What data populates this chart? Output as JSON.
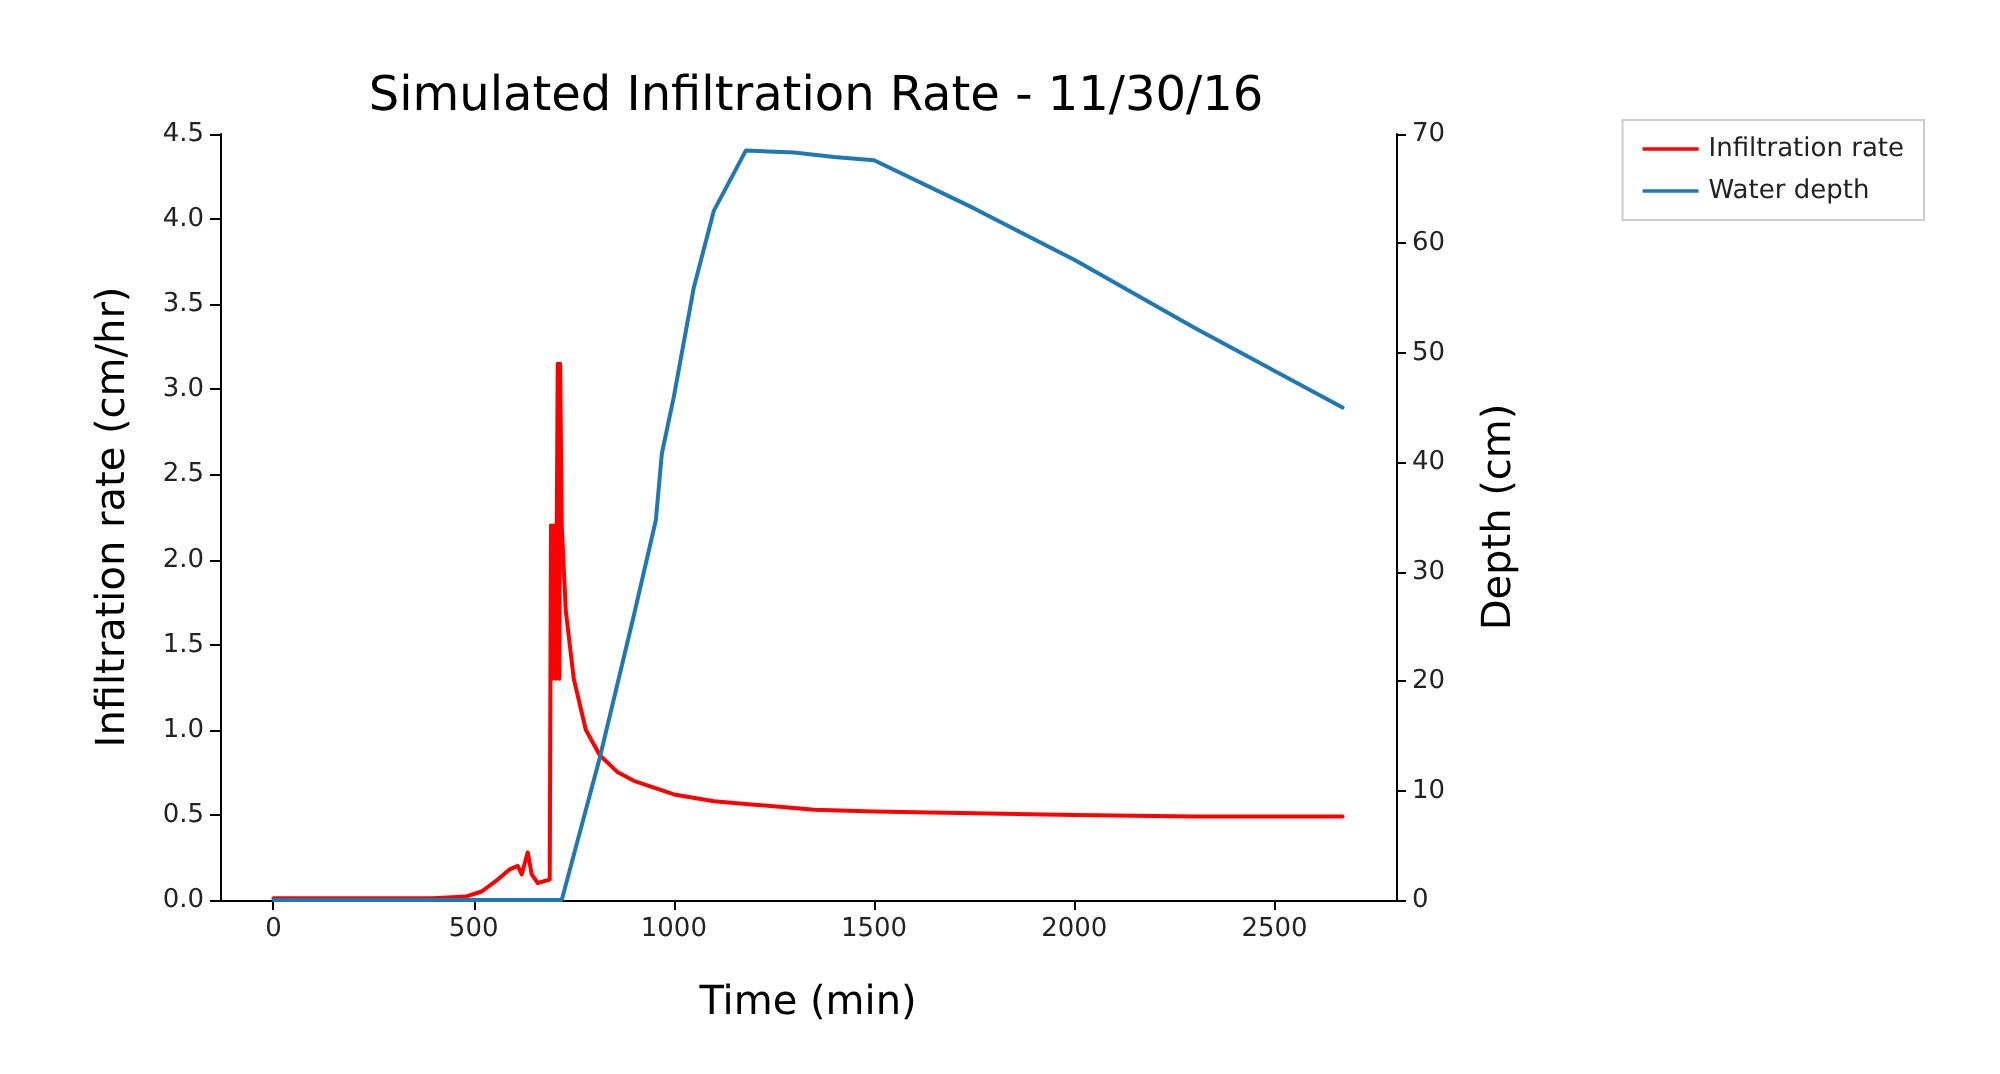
{
  "chart_data": {
    "type": "line",
    "title": "Simulated Infiltration Rate - 11/30/16",
    "xlabel": "Time (min)",
    "ylabel": "Infiltration rate (cm/hr)",
    "y2label": "Depth (cm)",
    "xlim": [
      -133.5,
      2803.5
    ],
    "xticks": [
      0,
      500,
      1000,
      1500,
      2000,
      2500
    ],
    "ylim": [
      0,
      4.5
    ],
    "yticks": [
      {
        "value": 0,
        "label": "0.0"
      },
      0.5,
      {
        "value": 1,
        "label": "1.0"
      },
      1.5,
      {
        "value": 2,
        "label": "2.0"
      },
      2.5,
      {
        "value": 3,
        "label": "3.0"
      },
      3.5,
      {
        "value": 4,
        "label": "4.0"
      },
      4.5
    ],
    "y2lim": [
      0,
      70
    ],
    "y2ticks": [
      0,
      10,
      20,
      30,
      40,
      50,
      60,
      70
    ],
    "grid": false,
    "legend": "top right",
    "marker": "none",
    "line_style": "solid",
    "series": [
      {
        "name": "Infiltration rate",
        "color": "#ff0000",
        "x": [
          0,
          200,
          400,
          480,
          520,
          560,
          590,
          610,
          620,
          635,
          645,
          660,
          690,
          693,
          696,
          700,
          705,
          710,
          714,
          716,
          720,
          730,
          750,
          780,
          815,
          860,
          900,
          1000,
          1100,
          1200,
          1350,
          1500,
          1750,
          2000,
          2300,
          2670
        ],
        "values": [
          0.01,
          0.01,
          0.01,
          0.02,
          0.05,
          0.12,
          0.18,
          0.2,
          0.15,
          0.28,
          0.15,
          0.1,
          0.12,
          2.2,
          1.3,
          2.2,
          1.3,
          3.15,
          1.3,
          3.15,
          2.2,
          1.7,
          1.3,
          1.0,
          0.85,
          0.75,
          0.7,
          0.62,
          0.58,
          0.56,
          0.53,
          0.52,
          0.51,
          0.5,
          0.49,
          0.49
        ]
      },
      {
        "name": "Water depth",
        "color": "#1f77b4",
        "axis": "y2",
        "x": [
          0,
          500,
          720,
          815,
          900,
          955,
          970,
          1000,
          1050,
          1100,
          1180,
          1300,
          1400,
          1500,
          1750,
          2000,
          2300,
          2670
        ],
        "values": [
          0,
          0,
          0,
          13,
          26,
          34.7,
          40.8,
          46,
          56,
          63,
          68.5,
          68.3,
          67.9,
          67.6,
          63.2,
          58.5,
          52.3,
          45
        ]
      }
    ]
  }
}
